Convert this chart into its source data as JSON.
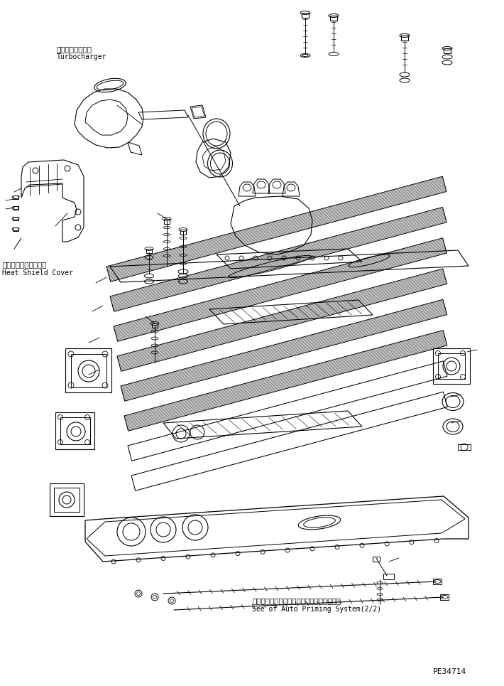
{
  "background_color": "#ffffff",
  "line_color": "#000000",
  "fig_width": 7.1,
  "fig_height": 9.65,
  "dpi": 100,
  "labels": {
    "turbocharger_jp": "ターボチャージャ",
    "turbocharger_en": "Turbocharger",
    "heat_shield_jp": "ヒートシールドカバー",
    "heat_shield_en": "Heat Shield Cover",
    "auto_priming_jp": "オートプライミングシステム（２／２）参照",
    "auto_priming_en": "See of Auto Priming System(2/2)",
    "part_number": "PE34714"
  }
}
